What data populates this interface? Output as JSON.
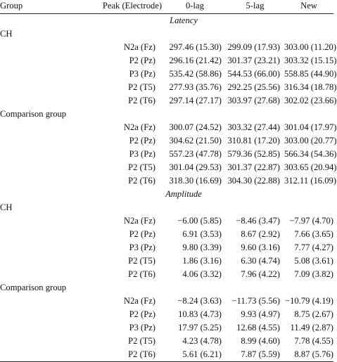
{
  "headers": {
    "group": "Group",
    "peak": "Peak (Electrode)",
    "lag0": "0-lag",
    "lag5": "5-lag",
    "new": "New"
  },
  "sections": [
    {
      "title": "Latency",
      "groups": [
        {
          "name": "CH",
          "rows": [
            {
              "peak": "N2a (Fz)",
              "lag0": "297.46 (15.30)",
              "lag5": "299.09 (17.93)",
              "new": "303.00 (11.20)"
            },
            {
              "peak": "P2 (Pz)",
              "lag0": "296.16 (21.42)",
              "lag5": "301.37 (23.21)",
              "new": "303.32 (15.15)"
            },
            {
              "peak": "P3 (Pz)",
              "lag0": "535.42 (58.86)",
              "lag5": "544.53 (66.00)",
              "new": "558.85 (44.90)"
            },
            {
              "peak": "P2 (T5)",
              "lag0": "277.93 (35.76)",
              "lag5": "292.25 (25.56)",
              "new": "316.34 (18.78)"
            },
            {
              "peak": "P2 (T6)",
              "lag0": "297.14 (27.17)",
              "lag5": "303.97 (27.68)",
              "new": "302.02 (23.66)"
            }
          ]
        },
        {
          "name": "Comparison group",
          "rows": [
            {
              "peak": "N2a (Fz)",
              "lag0": "300.07 (24.52)",
              "lag5": "303.32 (27.44)",
              "new": "301.04 (17.97)"
            },
            {
              "peak": "P2 (Pz)",
              "lag0": "304.62 (21.50)",
              "lag5": "310.81 (17.20)",
              "new": "303.00 (20.77)"
            },
            {
              "peak": "P3 (Pz)",
              "lag0": "557.23 (47.78)",
              "lag5": "579.36 (52.85)",
              "new": "566.34 (54.36)"
            },
            {
              "peak": "P2 (T5)",
              "lag0": "301.04 (29.53)",
              "lag5": "301.37 (22.87)",
              "new": "303.65 (20.94)"
            },
            {
              "peak": "P2 (T6)",
              "lag0": "318.30 (16.69)",
              "lag5": "304.30 (22.88)",
              "new": "312.11 (16.09)"
            }
          ]
        }
      ]
    },
    {
      "title": "Amplitude",
      "groups": [
        {
          "name": "CH",
          "rows": [
            {
              "peak": "N2a (Fz)",
              "lag0": "−6.00 (5.85)",
              "lag5": "−8.46 (3.47)",
              "new": "−7.97 (4.70)"
            },
            {
              "peak": "P2 (Pz)",
              "lag0": "6.91 (3.53)",
              "lag5": "8.67 (2.92)",
              "new": "7.66 (3.65)"
            },
            {
              "peak": "P3 (Pz)",
              "lag0": "9.80 (3.39)",
              "lag5": "9.60 (3.16)",
              "new": "7.77 (4.27)"
            },
            {
              "peak": "P2 (T5)",
              "lag0": "1.86 (3.16)",
              "lag5": "6.30 (4.74)",
              "new": "5.08 (3.61)"
            },
            {
              "peak": "P2 (T6)",
              "lag0": "4.06 (3.32)",
              "lag5": "7.96 (4.22)",
              "new": "7.09 (3.82)"
            }
          ]
        },
        {
          "name": "Comparison group",
          "rows": [
            {
              "peak": "N2a (Fz)",
              "lag0": "−8.24 (3.63)",
              "lag5": "−11.73 (5.56)",
              "new": "−10.79 (4.19)"
            },
            {
              "peak": "P2 (Pz)",
              "lag0": "10.83 (4.73)",
              "lag5": "9.93 (4.97)",
              "new": "8.75 (2.67)"
            },
            {
              "peak": "P3 (Pz)",
              "lag0": "17.97 (5.25)",
              "lag5": "12.68 (4.55)",
              "new": "11.49 (2.87)"
            },
            {
              "peak": "P2 (T5)",
              "lag0": "4.23 (4.78)",
              "lag5": "8.99 (4.60)",
              "new": "7.78 (4.55)"
            },
            {
              "peak": "P2 (T6)",
              "lag0": "5.61 (6.21)",
              "lag5": "7.87 (5.59)",
              "new": "8.87 (5.76)"
            }
          ]
        }
      ]
    }
  ]
}
